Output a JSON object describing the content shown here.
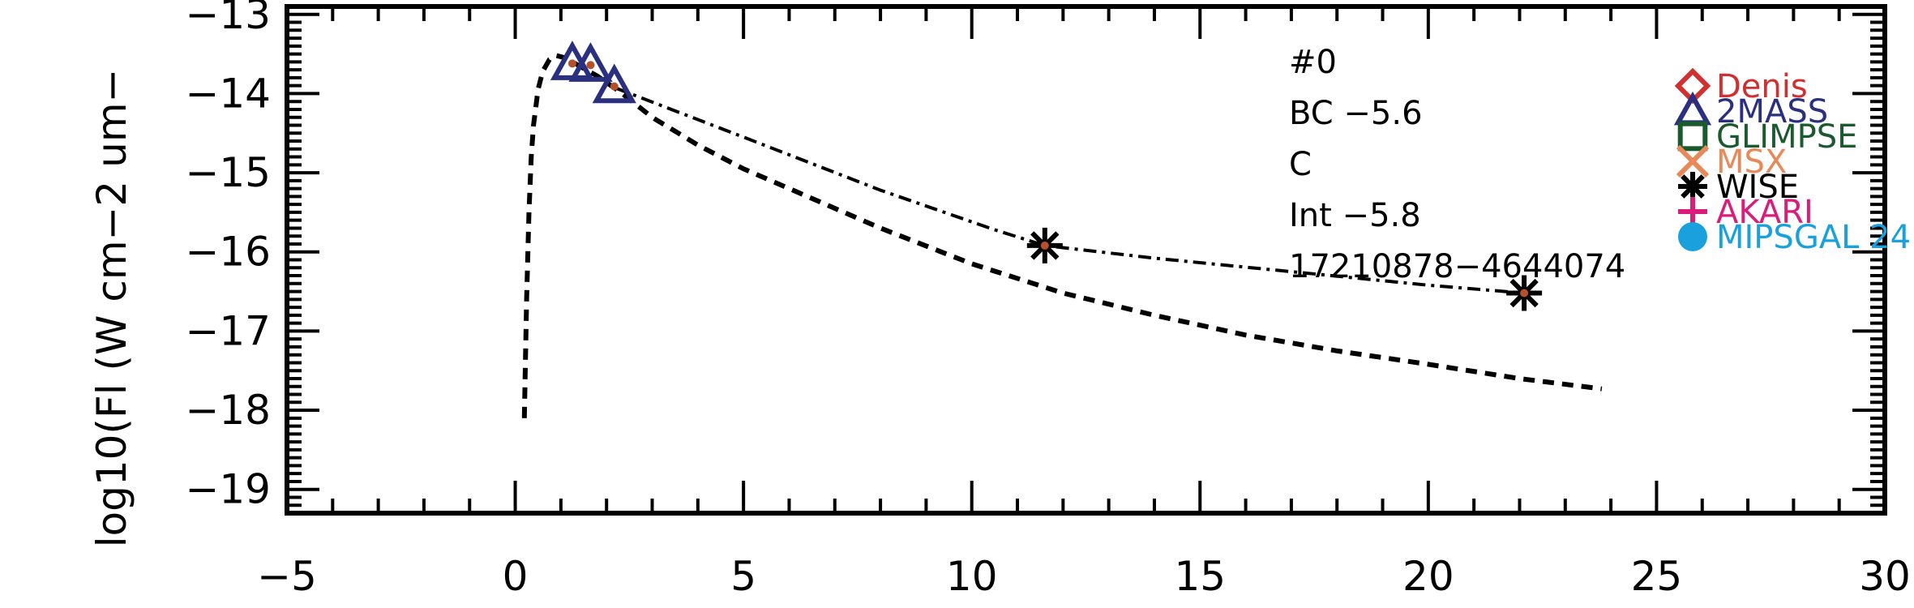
{
  "chart_data": {
    "type": "scatter",
    "title": "",
    "xlabel": "",
    "ylabel": "log10(Fl (W cm−2 um−",
    "xlim": [
      -5,
      30
    ],
    "ylim": [
      -19.3,
      -12.9
    ],
    "x_major_ticks": [
      -5,
      0,
      5,
      10,
      15,
      20,
      25,
      30
    ],
    "x_tick_labels": [
      "−5",
      "0",
      "5",
      "10",
      "15",
      "20",
      "25",
      "30"
    ],
    "y_major_ticks": [
      -13,
      -14,
      -15,
      -16,
      -17,
      -18,
      -19
    ],
    "y_tick_labels": [
      "−13",
      "−14",
      "−15",
      "−16",
      "−17",
      "−18",
      "−19"
    ],
    "annotations": [
      "#0",
      "BC −5.6",
      "C",
      "Int −5.8",
      "17210878−4644074"
    ],
    "legend": {
      "position": "right",
      "entries": [
        {
          "name": "Denis",
          "marker": "diamond",
          "color": "#d03030"
        },
        {
          "name": "2MASS",
          "marker": "triangle",
          "color": "#2a2f80"
        },
        {
          "name": "GLIMPSE",
          "marker": "square",
          "color": "#1a5a2e"
        },
        {
          "name": "MSX",
          "marker": "x",
          "color": "#e8895a"
        },
        {
          "name": "WISE",
          "marker": "asterisk",
          "color": "#000000"
        },
        {
          "name": "AKARI",
          "marker": "plus",
          "color": "#d81e7a"
        },
        {
          "name": "MIPSGAL 24",
          "marker": "circle",
          "color": "#1aa0dc"
        }
      ]
    },
    "series": [
      {
        "marker": "triangle",
        "color": "#2a2f80",
        "points": [
          [
            1.25,
            -13.62
          ],
          [
            1.65,
            -13.64
          ],
          [
            2.17,
            -13.91
          ]
        ]
      },
      {
        "marker": "asterisk",
        "color": "#000000",
        "points": [
          [
            11.6,
            -15.92
          ],
          [
            22.1,
            -16.52
          ]
        ]
      }
    ],
    "model_curve_dashed": [
      [
        0.2,
        -18.1
      ],
      [
        0.25,
        -16.6
      ],
      [
        0.3,
        -15.5
      ],
      [
        0.35,
        -14.8
      ],
      [
        0.4,
        -14.4
      ],
      [
        0.5,
        -13.95
      ],
      [
        0.6,
        -13.72
      ],
      [
        0.75,
        -13.57
      ],
      [
        0.9,
        -13.52
      ],
      [
        1.1,
        -13.55
      ],
      [
        1.4,
        -13.65
      ],
      [
        1.8,
        -13.78
      ],
      [
        2.3,
        -13.98
      ],
      [
        3.0,
        -14.3
      ],
      [
        4.0,
        -14.65
      ],
      [
        5.0,
        -14.95
      ],
      [
        6.0,
        -15.2
      ],
      [
        8.0,
        -15.7
      ],
      [
        10.0,
        -16.15
      ],
      [
        12.0,
        -16.52
      ],
      [
        14.0,
        -16.8
      ],
      [
        16.0,
        -17.05
      ],
      [
        18.0,
        -17.25
      ],
      [
        20.0,
        -17.42
      ],
      [
        22.0,
        -17.6
      ],
      [
        23.8,
        -17.73
      ]
    ],
    "model_curve_dashdot": [
      [
        2.2,
        -13.93
      ],
      [
        5.0,
        -14.55
      ],
      [
        8.0,
        -15.22
      ],
      [
        10.5,
        -15.72
      ],
      [
        11.6,
        -15.92
      ],
      [
        14.0,
        -16.08
      ],
      [
        17.0,
        -16.25
      ],
      [
        20.0,
        -16.42
      ],
      [
        22.1,
        -16.52
      ]
    ]
  }
}
